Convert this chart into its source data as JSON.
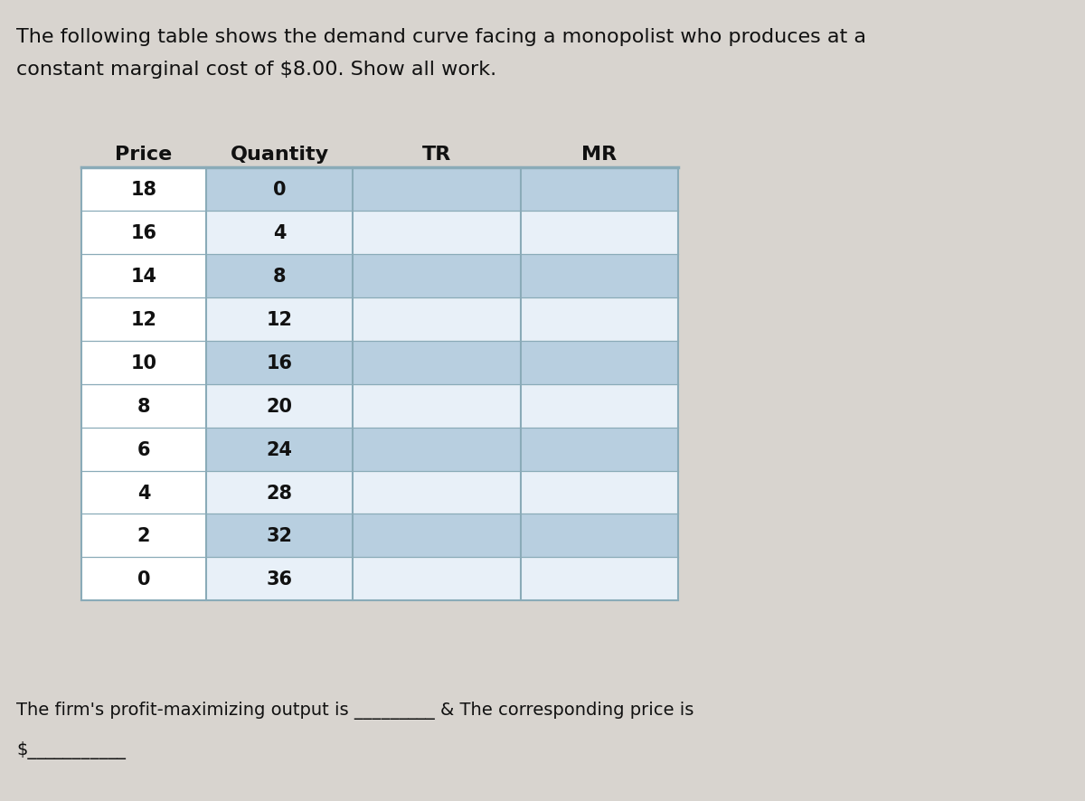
{
  "title_line1": "The following table shows the demand curve facing a monopolist who produces at a",
  "title_line2": "constant marginal cost of $8.00. Show all work.",
  "col_headers": [
    "Price",
    "Quantity",
    "TR",
    "MR"
  ],
  "prices": [
    18,
    16,
    14,
    12,
    10,
    8,
    6,
    4,
    2,
    0
  ],
  "quantities": [
    0,
    4,
    8,
    12,
    16,
    20,
    24,
    28,
    32,
    36
  ],
  "footer_line1": "The firm's profit-maximizing output is _________ & The corresponding price is",
  "footer_line2": "$___________",
  "page_bg": "#d8d4cf",
  "row_blue": "#b8cfe0",
  "row_white": "#e8f0f8",
  "price_col_bg": "#ffffff",
  "header_row_bg": "#a8c4d8",
  "border_color": "#8aabb8",
  "text_color": "#111111",
  "header_font_size": 16,
  "cell_font_size": 15,
  "title_font_size": 16,
  "footer_font_size": 14
}
